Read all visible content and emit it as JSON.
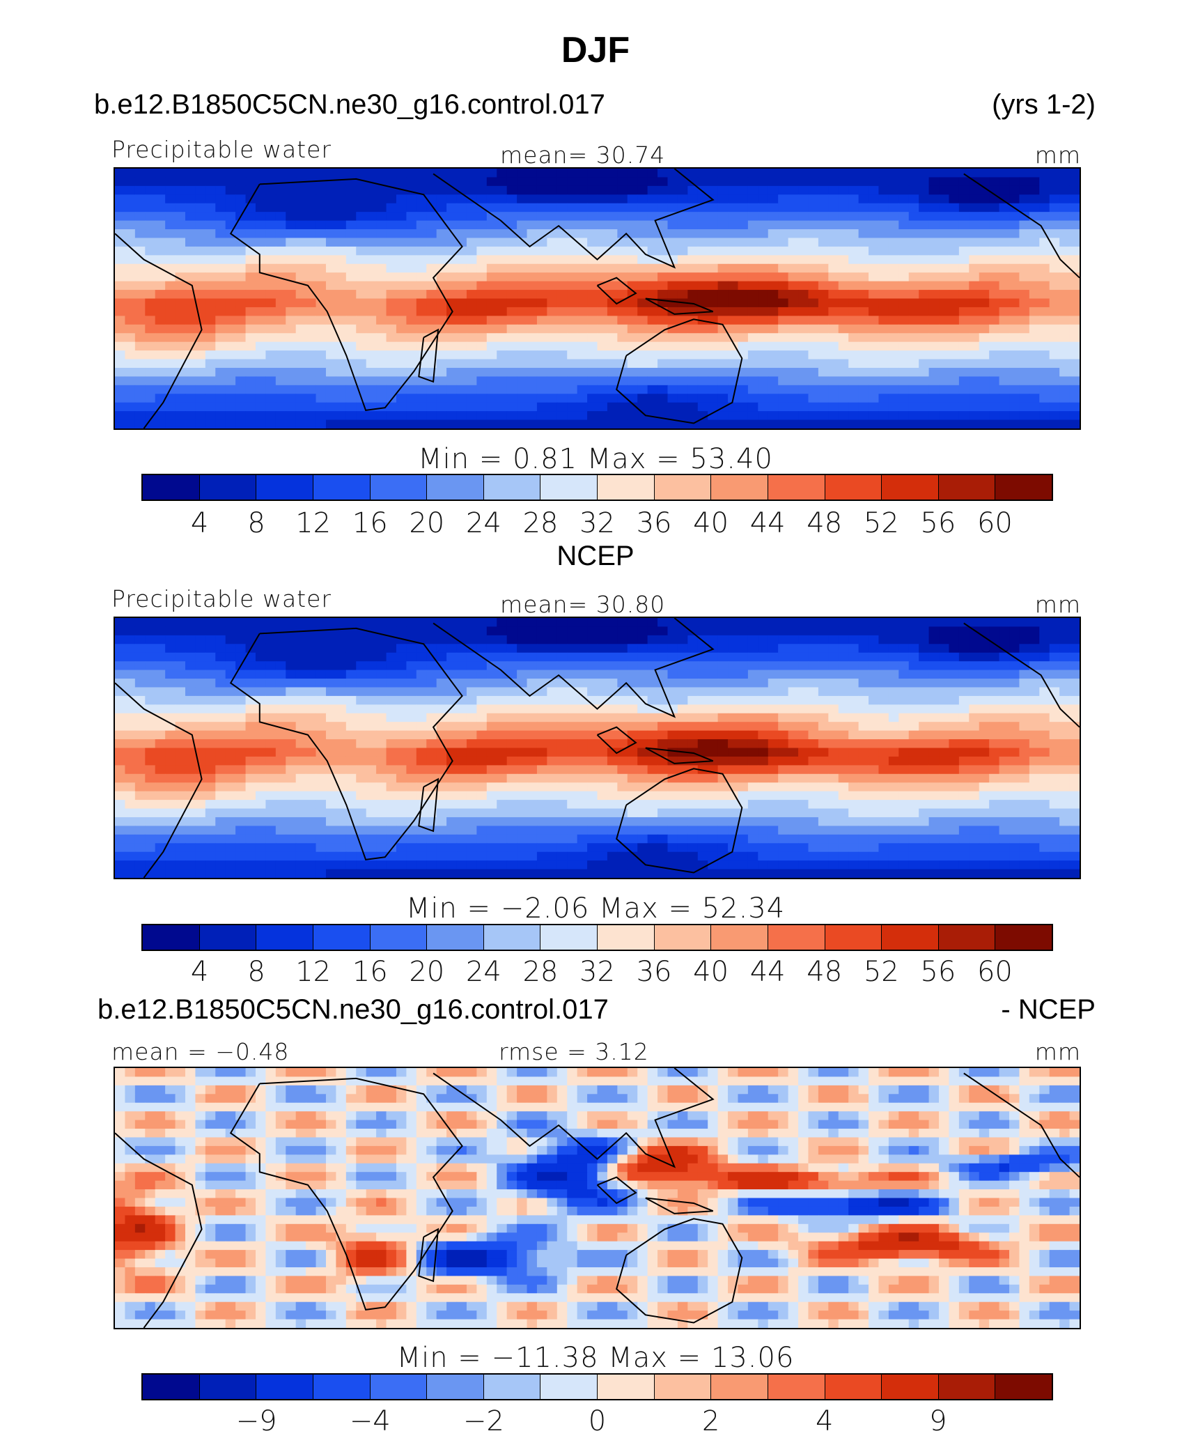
{
  "figure": {
    "title": "DJF"
  },
  "palette": [
    "#00098f",
    "#0020b8",
    "#0533dd",
    "#1a4ff0",
    "#3b6ef5",
    "#6a96f2",
    "#a6c6f7",
    "#d6e6fa",
    "#fde3d0",
    "#fcc0a0",
    "#f99a72",
    "#f5704a",
    "#ea4a23",
    "#d42e0b",
    "#a91d06",
    "#7d0b00"
  ],
  "land_color": "#000000",
  "chart_data": [
    {
      "type": "heatmap",
      "header_left": "b.e12.B1850C5CN.ne30_g16.control.017",
      "header_right": "(yrs 1-2)",
      "label_left": "Precipitable water",
      "label_center": "mean=   30.74",
      "label_right": "mm",
      "min_max": "Min  =     0.81  Max  =    53.40",
      "levels": [
        "4",
        "8",
        "12",
        "16",
        "20",
        "24",
        "28",
        "32",
        "36",
        "40",
        "44",
        "48",
        "52",
        "56",
        "60"
      ],
      "field_kind": "pw",
      "field_min": 0.81,
      "field_max": 53.4
    },
    {
      "type": "heatmap",
      "header_center": "NCEP",
      "label_left": "Precipitable water",
      "label_center": "mean=   30.80",
      "label_right": "mm",
      "min_max": "Min  =   −2.06  Max  =    52.34",
      "levels": [
        "4",
        "8",
        "12",
        "16",
        "20",
        "24",
        "28",
        "32",
        "36",
        "40",
        "44",
        "48",
        "52",
        "56",
        "60"
      ],
      "field_kind": "pw2",
      "field_min": -2.06,
      "field_max": 52.34
    },
    {
      "type": "heatmap",
      "header_left": "b.e12.B1850C5CN.ne30_g16.control.017",
      "header_right": "- NCEP",
      "label_left": "mean  =   −0.48",
      "label_center": "rmse  =      3.12",
      "label_right": "mm",
      "min_max": "Min  =  −11.38  Max  =    13.06",
      "levels": [
        "−9",
        "−4",
        "−2",
        "0",
        "2",
        "4",
        "9"
      ],
      "field_kind": "diff",
      "field_min": -11.38,
      "field_max": 13.06
    }
  ]
}
